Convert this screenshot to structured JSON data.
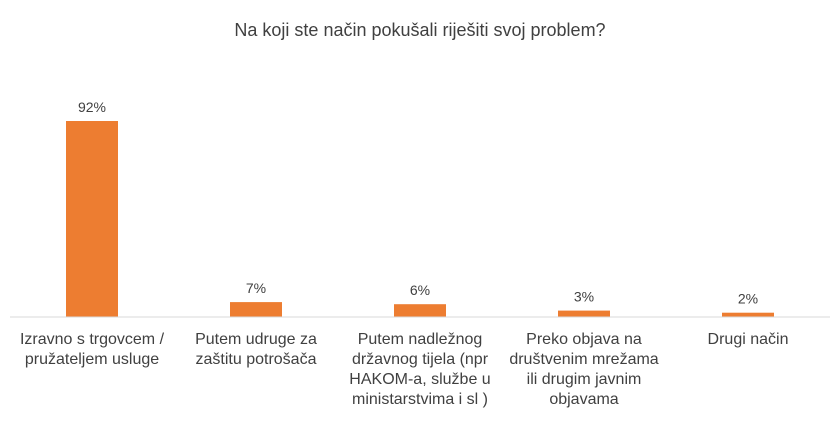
{
  "chart_data": {
    "type": "bar",
    "title": "Na koji ste način pokušali riješiti svoj problem?",
    "categories": [
      "Izravno s trgovcem / pružateljem usluge",
      "Putem udruge za zaštitu potrošača",
      "Putem nadležnog državnog tijela (npr HAKOM-a, službe u ministarstvima i sl )",
      "Preko objava na društvenim mrežama ili drugim javnim objavama",
      "Drugi način"
    ],
    "values": [
      92,
      7,
      6,
      3,
      2
    ],
    "data_labels": [
      "92%",
      "7%",
      "6%",
      "3%",
      "2%"
    ],
    "value_unit": "%",
    "bar_color": "#ED7D31",
    "axis_color": "#D9D9D9",
    "text_color": "#404040",
    "ylim": [
      0,
      100
    ],
    "grid": false,
    "legend": "none"
  }
}
